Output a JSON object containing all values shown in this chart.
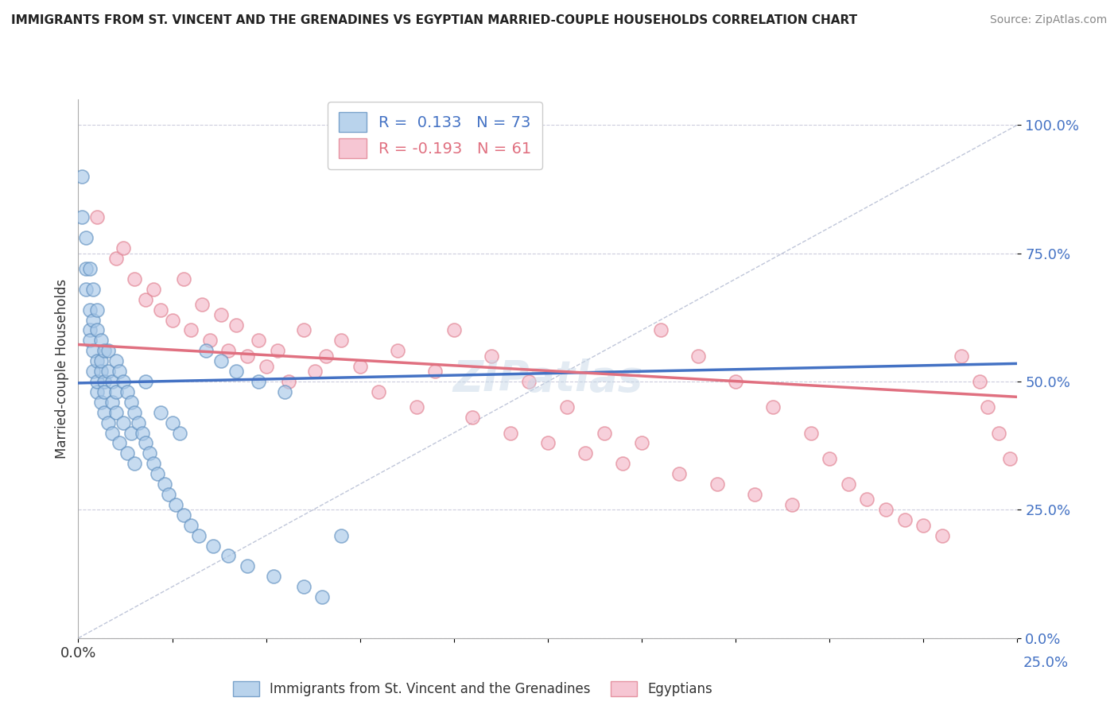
{
  "title": "IMMIGRANTS FROM ST. VINCENT AND THE GRENADINES VS EGYPTIAN MARRIED-COUPLE HOUSEHOLDS CORRELATION CHART",
  "source": "Source: ZipAtlas.com",
  "ylabel_label": "Married-couple Households",
  "legend_blue_label": "Immigrants from St. Vincent and the Grenadines",
  "legend_pink_label": "Egyptians",
  "R_blue": 0.133,
  "N_blue": 73,
  "R_pink": -0.193,
  "N_pink": 61,
  "blue_color": "#a8c8e8",
  "pink_color": "#f4b8c8",
  "blue_edge_color": "#6090c0",
  "pink_edge_color": "#e08090",
  "blue_line_color": "#4472c4",
  "pink_line_color": "#e07080",
  "diagonal_color": "#b0b8d0",
  "xmin": 0.0,
  "xmax": 0.25,
  "ymin": 0.0,
  "ymax": 1.05,
  "yticks": [
    0.0,
    0.25,
    0.5,
    0.75,
    1.0
  ],
  "ytick_labels": [
    "0.0%",
    "25.0%",
    "50.0%",
    "75.0%",
    "100.0%"
  ],
  "blue_trend_x0": 0.0,
  "blue_trend_y0": 0.497,
  "blue_trend_x1": 0.25,
  "blue_trend_y1": 0.535,
  "pink_trend_x0": 0.0,
  "pink_trend_y0": 0.572,
  "pink_trend_x1": 0.25,
  "pink_trend_y1": 0.47,
  "blue_scatter_x": [
    0.001,
    0.001,
    0.002,
    0.002,
    0.002,
    0.003,
    0.003,
    0.003,
    0.003,
    0.004,
    0.004,
    0.004,
    0.004,
    0.005,
    0.005,
    0.005,
    0.005,
    0.005,
    0.006,
    0.006,
    0.006,
    0.006,
    0.007,
    0.007,
    0.007,
    0.007,
    0.008,
    0.008,
    0.008,
    0.009,
    0.009,
    0.009,
    0.01,
    0.01,
    0.01,
    0.011,
    0.011,
    0.012,
    0.012,
    0.013,
    0.013,
    0.014,
    0.014,
    0.015,
    0.015,
    0.016,
    0.017,
    0.018,
    0.018,
    0.019,
    0.02,
    0.021,
    0.022,
    0.023,
    0.024,
    0.025,
    0.026,
    0.027,
    0.028,
    0.03,
    0.032,
    0.034,
    0.036,
    0.038,
    0.04,
    0.042,
    0.045,
    0.048,
    0.052,
    0.055,
    0.06,
    0.065,
    0.07
  ],
  "blue_scatter_y": [
    0.9,
    0.82,
    0.78,
    0.68,
    0.72,
    0.64,
    0.6,
    0.72,
    0.58,
    0.62,
    0.56,
    0.68,
    0.52,
    0.54,
    0.6,
    0.48,
    0.64,
    0.5,
    0.52,
    0.58,
    0.46,
    0.54,
    0.5,
    0.56,
    0.44,
    0.48,
    0.52,
    0.42,
    0.56,
    0.5,
    0.46,
    0.4,
    0.54,
    0.48,
    0.44,
    0.52,
    0.38,
    0.5,
    0.42,
    0.48,
    0.36,
    0.46,
    0.4,
    0.44,
    0.34,
    0.42,
    0.4,
    0.38,
    0.5,
    0.36,
    0.34,
    0.32,
    0.44,
    0.3,
    0.28,
    0.42,
    0.26,
    0.4,
    0.24,
    0.22,
    0.2,
    0.56,
    0.18,
    0.54,
    0.16,
    0.52,
    0.14,
    0.5,
    0.12,
    0.48,
    0.1,
    0.08,
    0.2
  ],
  "pink_scatter_x": [
    0.005,
    0.01,
    0.012,
    0.015,
    0.018,
    0.02,
    0.022,
    0.025,
    0.028,
    0.03,
    0.033,
    0.035,
    0.038,
    0.04,
    0.042,
    0.045,
    0.048,
    0.05,
    0.053,
    0.056,
    0.06,
    0.063,
    0.066,
    0.07,
    0.075,
    0.08,
    0.085,
    0.09,
    0.095,
    0.1,
    0.105,
    0.11,
    0.115,
    0.12,
    0.125,
    0.13,
    0.135,
    0.14,
    0.145,
    0.15,
    0.155,
    0.16,
    0.165,
    0.17,
    0.175,
    0.18,
    0.185,
    0.19,
    0.195,
    0.2,
    0.205,
    0.21,
    0.215,
    0.22,
    0.225,
    0.23,
    0.235,
    0.24,
    0.242,
    0.245,
    0.248
  ],
  "pink_scatter_y": [
    0.82,
    0.74,
    0.76,
    0.7,
    0.66,
    0.68,
    0.64,
    0.62,
    0.7,
    0.6,
    0.65,
    0.58,
    0.63,
    0.56,
    0.61,
    0.55,
    0.58,
    0.53,
    0.56,
    0.5,
    0.6,
    0.52,
    0.55,
    0.58,
    0.53,
    0.48,
    0.56,
    0.45,
    0.52,
    0.6,
    0.43,
    0.55,
    0.4,
    0.5,
    0.38,
    0.45,
    0.36,
    0.4,
    0.34,
    0.38,
    0.6,
    0.32,
    0.55,
    0.3,
    0.5,
    0.28,
    0.45,
    0.26,
    0.4,
    0.35,
    0.3,
    0.27,
    0.25,
    0.23,
    0.22,
    0.2,
    0.55,
    0.5,
    0.45,
    0.4,
    0.35
  ]
}
